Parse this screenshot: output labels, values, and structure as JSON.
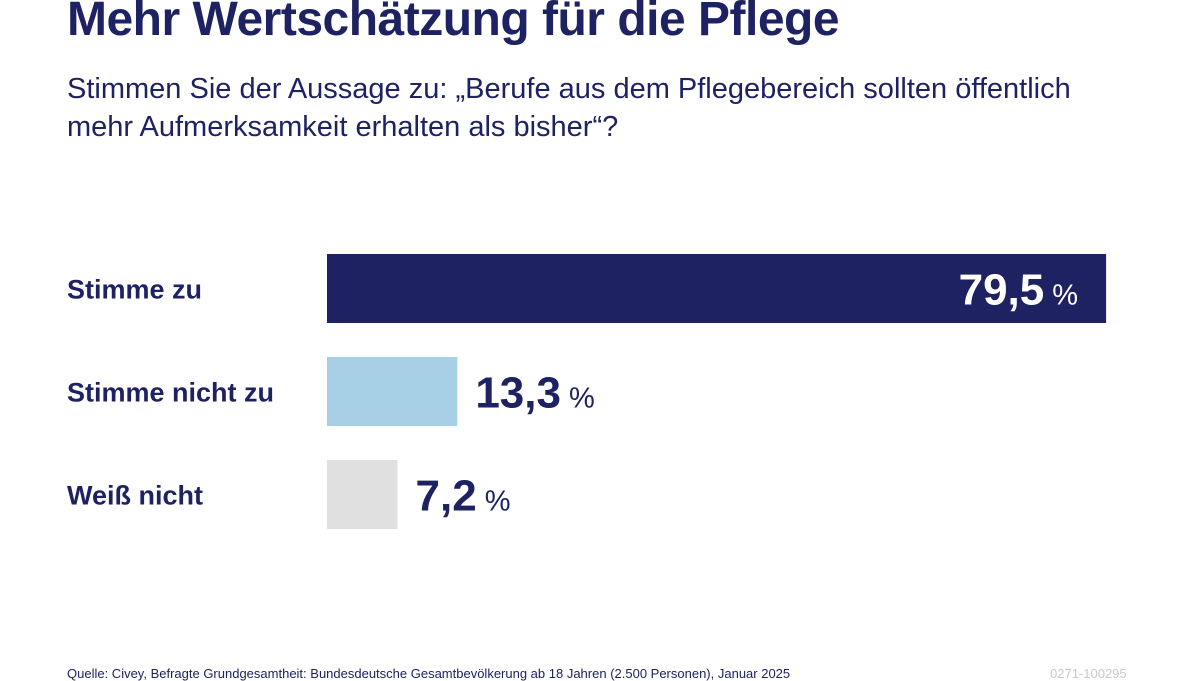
{
  "chart_data": {
    "type": "bar",
    "orientation": "horizontal",
    "title": "Mehr Wertschätzung für die Pflege",
    "subtitle": "Stimmen Sie der Aussage zu: „Berufe aus dem Pflegebereich sollten öffentlich mehr Aufmerksamkeit erhalten als bisher“?",
    "categories": [
      "Stimme zu",
      "Stimme nicht zu",
      "Weiß nicht"
    ],
    "values": [
      79.5,
      13.3,
      7.2
    ],
    "value_labels": [
      "79,5",
      "13,3",
      "7,2"
    ],
    "unit": "%",
    "colors": [
      "#1e2262",
      "#a7d0e6",
      "#e0e0e0"
    ],
    "xlim": [
      0,
      100
    ],
    "grid": false
  },
  "footer": {
    "source": "Quelle: Civey, Befragte Grundgesamtheit: Bundesdeutsche Gesamtbevölkerung ab 18 Jahren (2.500 Personen), Januar 2025",
    "code": "0271-100295"
  }
}
